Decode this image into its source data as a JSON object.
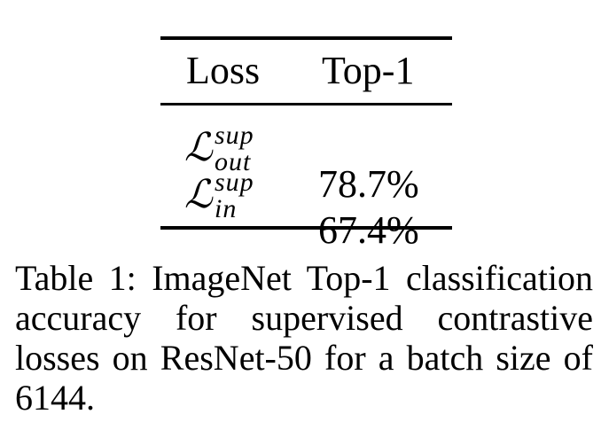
{
  "table": {
    "headers": {
      "loss": "Loss",
      "top1": "Top-1"
    },
    "rows": [
      {
        "loss_symbol": "ℒ",
        "loss_superscript": "sup",
        "loss_subscript": "out",
        "top1": "78.7%"
      },
      {
        "loss_symbol": "ℒ",
        "loss_superscript": "sup",
        "loss_subscript": "in",
        "top1": "67.4%"
      }
    ]
  },
  "caption": {
    "lines": [
      "Table 1: ImageNet Top-1 classification",
      "accuracy for supervised contrastive",
      "losses on ResNet-50 for a batch size of",
      "6144."
    ]
  }
}
